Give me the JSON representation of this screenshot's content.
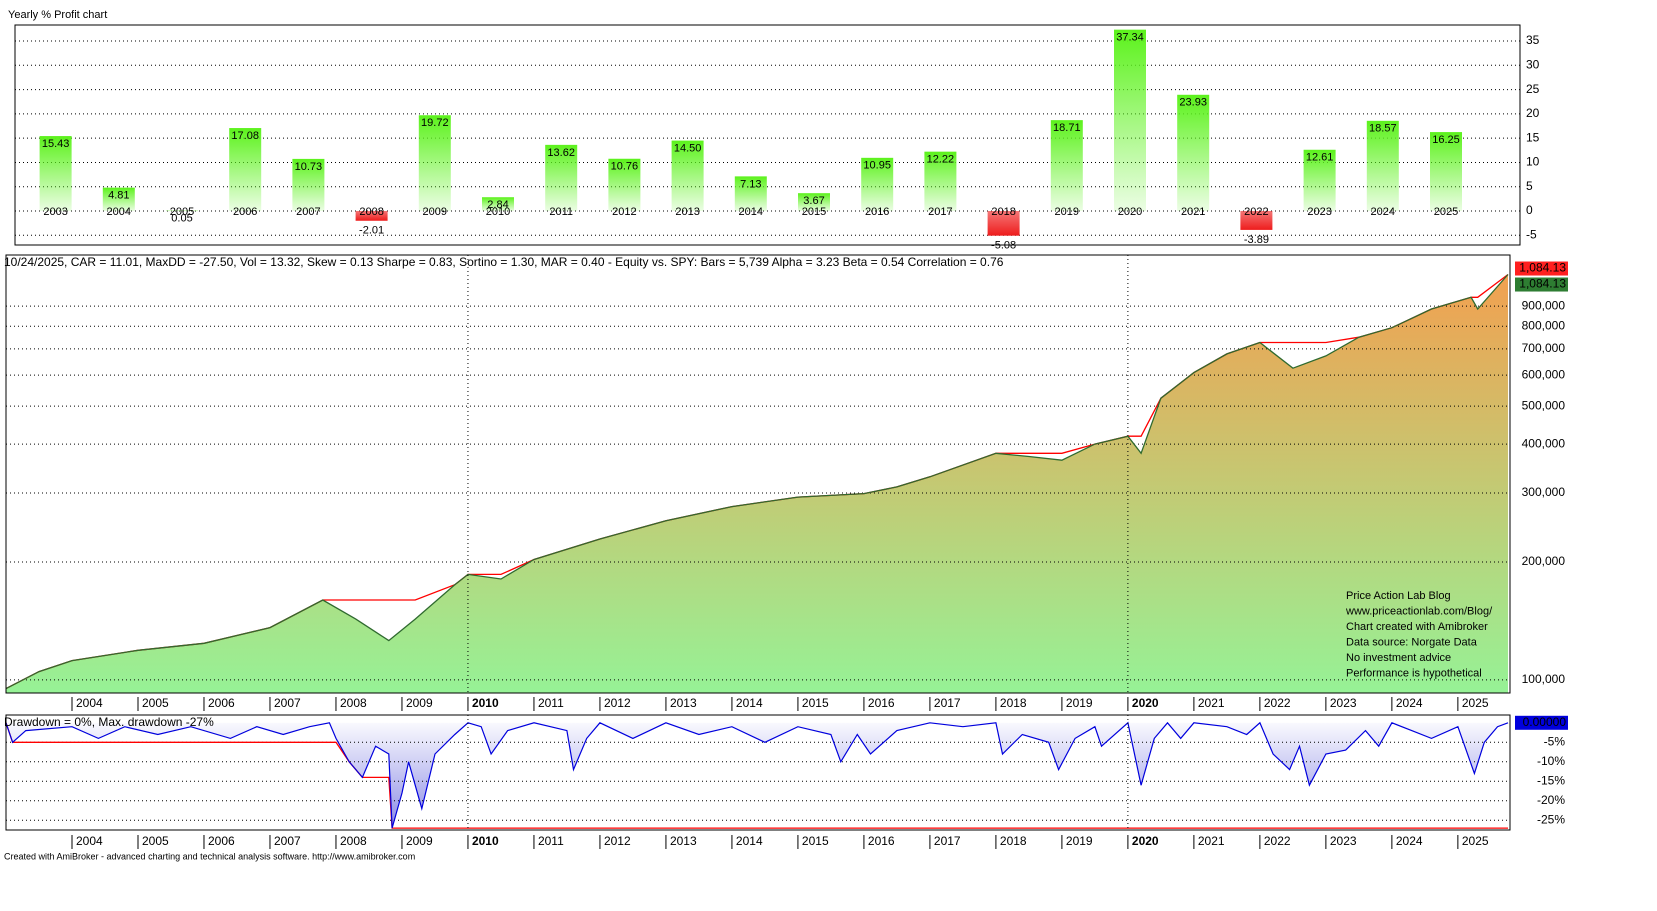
{
  "chart_data": [
    {
      "type": "bar",
      "title": "Yearly % Profit chart",
      "categories": [
        "2003",
        "2004",
        "2005",
        "2006",
        "2007",
        "2008",
        "2009",
        "2010",
        "2011",
        "2012",
        "2013",
        "2014",
        "2015",
        "2016",
        "2017",
        "2018",
        "2019",
        "2020",
        "2021",
        "2022",
        "2023",
        "2024",
        "2025"
      ],
      "values": [
        15.43,
        4.81,
        0.05,
        17.08,
        10.73,
        -2.01,
        19.72,
        2.84,
        13.62,
        10.76,
        14.5,
        7.13,
        3.67,
        10.95,
        12.22,
        -5.08,
        18.71,
        37.34,
        23.93,
        -3.89,
        12.61,
        18.57,
        16.25
      ],
      "value_labels": [
        "15.43",
        "4.81",
        "0.05",
        "17.08",
        "10.73",
        "-2.01",
        "19.72",
        "2.84",
        "13.62",
        "10.76",
        "14.50",
        "7.13",
        "3.67",
        "10.95",
        "12.22",
        "-5.08",
        "18.71",
        "37.34",
        "23.93",
        "-3.89",
        "12.61",
        "18.57",
        "16.25"
      ],
      "ylim": [
        -7,
        38.3
      ],
      "yticks": [
        -5,
        0,
        5,
        10,
        15,
        20,
        25,
        30,
        35
      ],
      "grid": true,
      "color": "#5cf21c",
      "negative_color": "#ee1c1c"
    },
    {
      "type": "line",
      "title": "10/24/2025, CAR = 11.01, MaxDD = -27.50, Vol = 13.32, Skew = 0.13 Sharpe = 0.83, Sortino = 1.30, MAR = 0.40 - Equity vs. SPY:  Bars = 5,739 Alpha = 3.23 Beta = 0.54 Correlation = 0.76",
      "x": [
        2003.0,
        2003.5,
        2004.0,
        2005.0,
        2006.0,
        2007.0,
        2007.8,
        2008.3,
        2008.8,
        2009.2,
        2009.8,
        2010.0,
        2010.5,
        2011.0,
        2012.0,
        2013.0,
        2014.0,
        2015.0,
        2016.0,
        2016.5,
        2017.0,
        2018.0,
        2018.5,
        2019.0,
        2019.5,
        2020.0,
        2020.2,
        2020.5,
        2021.0,
        2021.5,
        2022.0,
        2022.5,
        2023.0,
        2023.5,
        2024.0,
        2024.6,
        2025.2,
        2025.3,
        2025.76
      ],
      "values": [
        95000,
        105000,
        112000,
        119000,
        124000,
        136000,
        160000,
        143000,
        126000,
        143000,
        175000,
        186000,
        181000,
        203000,
        229000,
        255000,
        277000,
        293000,
        299000,
        311000,
        330000,
        379000,
        372000,
        364000,
        400000,
        419000,
        379000,
        524000,
        609000,
        680000,
        727000,
        625000,
        672000,
        750000,
        793000,
        885000,
        948000,
        885000,
        1084130
      ],
      "log_scale": true,
      "ylim": [
        92600,
        1216000
      ],
      "yticks": [
        {
          "value": 100000,
          "label": "100,000"
        },
        {
          "value": 200000,
          "label": "200,000"
        },
        {
          "value": 300000,
          "label": "300,000"
        },
        {
          "value": 400000,
          "label": "400,000"
        },
        {
          "value": 500000,
          "label": "500,000"
        },
        {
          "value": 600000,
          "label": "600,000"
        },
        {
          "value": 700000,
          "label": "700,000"
        },
        {
          "value": 800000,
          "label": "800,000"
        },
        {
          "value": 900000,
          "label": "900,000"
        }
      ],
      "xlim": [
        2003,
        2025.79
      ],
      "xticks": [
        2004,
        2005,
        2006,
        2007,
        2008,
        2009,
        2010,
        2011,
        2012,
        2013,
        2014,
        2015,
        2016,
        2017,
        2018,
        2019,
        2020,
        2021,
        2022,
        2023,
        2024,
        2025
      ],
      "grid": true,
      "color": "#2f6a2f",
      "peak_color": "#ff0000",
      "area_colors": [
        "#f2a050",
        "#96f296"
      ],
      "last_labels": [
        {
          "label": "1,084.13",
          "color": "#ff2020"
        },
        {
          "label": "1,084.13",
          "color": "#2e7d32"
        }
      ],
      "annotation": [
        "Price Action Lab Blog",
        "www.priceactionlab.com/Blog/",
        "Chart created with Amibroker",
        "Data source: Norgate Data",
        "No investment advice",
        "Performance is hypothetical"
      ]
    },
    {
      "type": "area",
      "title": "Drawdown = 0%, Max. drawdown -27%",
      "x": [
        2003.0,
        2003.1,
        2003.3,
        2004.0,
        2004.4,
        2004.8,
        2005.3,
        2005.8,
        2006.4,
        2006.8,
        2007.2,
        2007.6,
        2007.9,
        2008.0,
        2008.2,
        2008.4,
        2008.6,
        2008.8,
        2008.85,
        2009.0,
        2009.1,
        2009.3,
        2009.5,
        2009.8,
        2010.0,
        2010.2,
        2010.35,
        2010.6,
        2011.0,
        2011.5,
        2011.6,
        2011.8,
        2012.0,
        2012.5,
        2013.0,
        2013.5,
        2014.0,
        2014.5,
        2015.0,
        2015.5,
        2015.65,
        2015.9,
        2016.1,
        2016.5,
        2017.0,
        2017.5,
        2018.0,
        2018.1,
        2018.4,
        2018.8,
        2018.95,
        2019.2,
        2019.5,
        2019.6,
        2020.0,
        2020.2,
        2020.4,
        2020.6,
        2020.8,
        2021.0,
        2021.5,
        2021.8,
        2022.0,
        2022.2,
        2022.45,
        2022.6,
        2022.75,
        2023.0,
        2023.3,
        2023.6,
        2023.8,
        2024.0,
        2024.3,
        2024.6,
        2025.0,
        2025.25,
        2025.4,
        2025.6,
        2025.76
      ],
      "values": [
        0,
        -5,
        -2,
        -1,
        -4,
        -1,
        -3,
        -1,
        -4,
        -1,
        -3,
        -1,
        0,
        -4,
        -10,
        -14,
        -6,
        -8,
        -27,
        -18,
        -10,
        -22,
        -8,
        -3,
        0,
        -1,
        -8,
        -2,
        0,
        -2,
        -12,
        -4,
        0,
        -4,
        0,
        -3,
        -1,
        -5,
        -1,
        -3,
        -10,
        -3,
        -8,
        -2,
        0,
        -1,
        0,
        -8,
        -3,
        -5,
        -12,
        -4,
        -1,
        -6,
        0,
        -16,
        -4,
        0,
        -4,
        0,
        -1,
        -3,
        0,
        -8,
        -12,
        -6,
        -16,
        -8,
        -7,
        -2,
        -6,
        0,
        -2,
        -4,
        -1,
        -13,
        -5,
        -1,
        0
      ],
      "ylim": [
        -27.5,
        2
      ],
      "yticks": [
        {
          "value": -5,
          "label": "-5%"
        },
        {
          "value": -10,
          "label": "-10%"
        },
        {
          "value": -15,
          "label": "-15%"
        },
        {
          "value": -20,
          "label": "-20%"
        },
        {
          "value": -25,
          "label": "-25%"
        }
      ],
      "xlim": [
        2003,
        2025.79
      ],
      "xticks": [
        2004,
        2005,
        2006,
        2007,
        2008,
        2009,
        2010,
        2011,
        2012,
        2013,
        2014,
        2015,
        2016,
        2017,
        2018,
        2019,
        2020,
        2021,
        2022,
        2023,
        2024,
        2025
      ],
      "grid": true,
      "color": "#0000dd",
      "fill_color": "#8c8ce6",
      "max_color": "#ff0000",
      "last_label": "0.00000"
    }
  ],
  "footer": "Created with AmiBroker - advanced charting and technical analysis software. http://www.amibroker.com"
}
